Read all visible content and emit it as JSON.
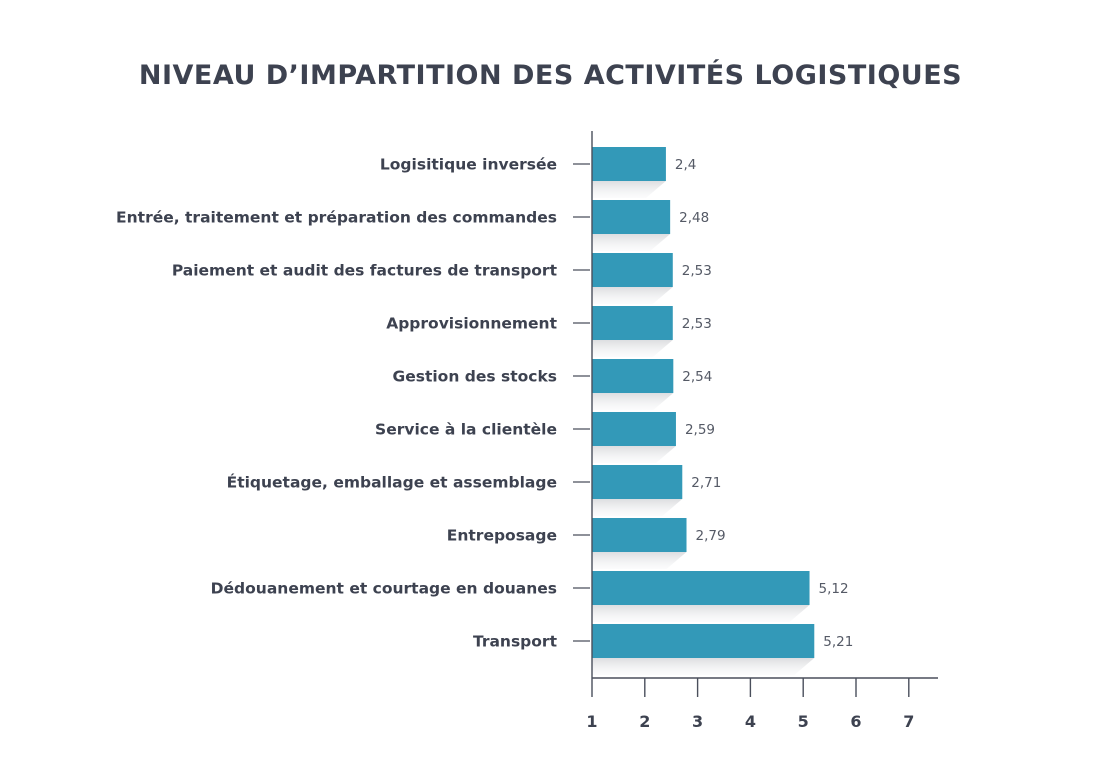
{
  "chart_data": {
    "type": "bar",
    "orientation": "horizontal",
    "title": "NIVEAU D’IMPARTITION DES ACTIVITÉS LOGISTIQUES",
    "categories": [
      "Logisitique inversée",
      "Entrée, traitement et préparation des commandes",
      "Paiement et audit des factures de transport",
      "Approvisionnement",
      "Gestion des stocks",
      "Service à la clientèle",
      "Étiquetage, emballage et assemblage",
      "Entreposage",
      "Dédouanement et courtage en douanes",
      "Transport"
    ],
    "values": [
      2.4,
      2.48,
      2.53,
      2.53,
      2.54,
      2.59,
      2.71,
      2.79,
      5.12,
      5.21
    ],
    "value_labels": [
      "2,4",
      "2,48",
      "2,53",
      "2,53",
      "2,54",
      "2,59",
      "2,71",
      "2,79",
      "5,12",
      "5,21"
    ],
    "xticks": [
      "1",
      "2",
      "3",
      "4",
      "5",
      "6",
      "7"
    ],
    "xlim": [
      1,
      7.55
    ],
    "xlabel": "",
    "ylabel": "",
    "grid": false,
    "legend": "none",
    "colors": {
      "bar": "#3399b8",
      "shadow": "#e6e7e9",
      "axis": "#4a4f5c",
      "text": "#3d4250"
    }
  }
}
